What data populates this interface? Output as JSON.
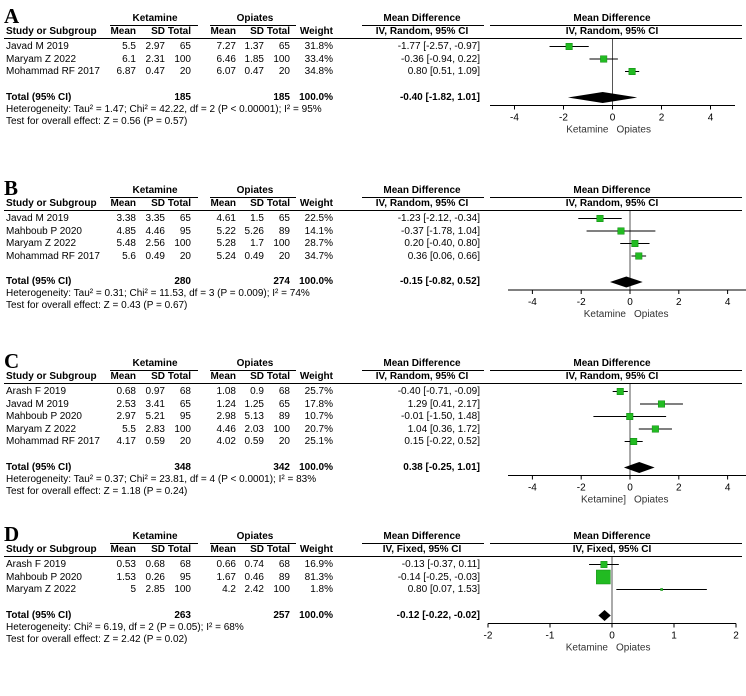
{
  "chart_data": [
    {
      "type": "forest",
      "label": "A",
      "model": "IV, Random, 95% CI",
      "header": {
        "study": "Study or Subgroup",
        "group1": "Ketamine",
        "group2": "Opiates",
        "mean": "Mean",
        "sd": "SD",
        "total": "Total",
        "weight": "Weight",
        "effect_title": "Mean Difference",
        "effect_model": "IV, Random, 95% CI"
      },
      "studies": [
        {
          "name": "Javad M 2019",
          "m1": "5.5",
          "sd1": "2.97",
          "n1": "65",
          "m2": "7.27",
          "sd2": "1.37",
          "n2": "65",
          "weight": "31.8%",
          "ci_text": "-1.77 [-2.57, -0.97]",
          "md": -1.77,
          "lo": -2.57,
          "hi": -0.97,
          "w": 31.8
        },
        {
          "name": "Maryam Z 2022",
          "m1": "6.1",
          "sd1": "2.31",
          "n1": "100",
          "m2": "6.46",
          "sd2": "1.85",
          "n2": "100",
          "weight": "33.4%",
          "ci_text": "-0.36 [-0.94, 0.22]",
          "md": -0.36,
          "lo": -0.94,
          "hi": 0.22,
          "w": 33.4
        },
        {
          "name": "Mohammad RF 2017",
          "m1": "6.87",
          "sd1": "0.47",
          "n1": "20",
          "m2": "6.07",
          "sd2": "0.47",
          "n2": "20",
          "weight": "34.8%",
          "ci_text": "0.80 [0.51, 1.09]",
          "md": 0.8,
          "lo": 0.51,
          "hi": 1.09,
          "w": 34.8
        }
      ],
      "total": {
        "label": "Total (95% CI)",
        "n1": "185",
        "n2": "185",
        "weight": "100.0%",
        "ci_text": "-0.40 [-1.82, 1.01]",
        "md": -0.4,
        "lo": -1.82,
        "hi": 1.01
      },
      "heterogeneity": "Heterogeneity: Tau² = 1.47; Chi² = 42.22, df = 2 (P < 0.00001); I² = 95%",
      "overall_effect": "Test for overall effect: Z = 0.56 (P = 0.57)",
      "axis": {
        "ticks": [
          "-4",
          "-2",
          "0",
          "2",
          "4"
        ],
        "tick_values": [
          -4,
          -2,
          0,
          2,
          4
        ],
        "range": [
          -5,
          5
        ],
        "left_label": "Ketamine",
        "right_label": "Opiates"
      }
    },
    {
      "type": "forest",
      "label": "B",
      "model": "IV, Random, 95% CI",
      "header": {
        "study": "Study or Subgroup",
        "group1": "Ketamine",
        "group2": "Opiates",
        "mean": "Mean",
        "sd": "SD",
        "total": "Total",
        "weight": "Weight",
        "effect_title": "Mean Difference",
        "effect_model": "IV, Random, 95% CI"
      },
      "studies": [
        {
          "name": "Javad M 2019",
          "m1": "3.38",
          "sd1": "3.35",
          "n1": "65",
          "m2": "4.61",
          "sd2": "1.5",
          "n2": "65",
          "weight": "22.5%",
          "ci_text": "-1.23 [-2.12, -0.34]",
          "md": -1.23,
          "lo": -2.12,
          "hi": -0.34,
          "w": 22.5
        },
        {
          "name": "Mahboub P 2020",
          "m1": "4.85",
          "sd1": "4.46",
          "n1": "95",
          "m2": "5.22",
          "sd2": "5.26",
          "n2": "89",
          "weight": "14.1%",
          "ci_text": "-0.37 [-1.78, 1.04]",
          "md": -0.37,
          "lo": -1.78,
          "hi": 1.04,
          "w": 14.1
        },
        {
          "name": "Maryam Z 2022",
          "m1": "5.48",
          "sd1": "2.56",
          "n1": "100",
          "m2": "5.28",
          "sd2": "1.7",
          "n2": "100",
          "weight": "28.7%",
          "ci_text": "0.20 [-0.40, 0.80]",
          "md": 0.2,
          "lo": -0.4,
          "hi": 0.8,
          "w": 28.7
        },
        {
          "name": "Mohammad RF 2017",
          "m1": "5.6",
          "sd1": "0.49",
          "n1": "20",
          "m2": "5.24",
          "sd2": "0.49",
          "n2": "20",
          "weight": "34.7%",
          "ci_text": "0.36 [0.06, 0.66]",
          "md": 0.36,
          "lo": 0.06,
          "hi": 0.66,
          "w": 34.7
        }
      ],
      "total": {
        "label": "Total (95% CI)",
        "n1": "280",
        "n2": "274",
        "weight": "100.0%",
        "ci_text": "-0.15 [-0.82, 0.52]",
        "md": -0.15,
        "lo": -0.82,
        "hi": 0.52
      },
      "heterogeneity": "Heterogeneity: Tau² = 0.31; Chi² = 11.53, df = 3 (P = 0.009); I² = 74%",
      "overall_effect": "Test for overall effect: Z = 0.43 (P = 0.67)",
      "axis": {
        "ticks": [
          "-4",
          "-2",
          "0",
          "2",
          "4"
        ],
        "tick_values": [
          -4,
          -2,
          0,
          2,
          4
        ],
        "range": [
          -5,
          5
        ],
        "left_label": "Ketamine",
        "right_label": "Opiates"
      }
    },
    {
      "type": "forest",
      "label": "C",
      "model": "IV, Random, 95% CI",
      "header": {
        "study": "Study or Subgroup",
        "group1": "Ketamine",
        "group2": "Opiates",
        "mean": "Mean",
        "sd": "SD",
        "total": "Total",
        "weight": "Weight",
        "effect_title": "Mean Difference",
        "effect_model": "IV, Random, 95% CI"
      },
      "studies": [
        {
          "name": "Arash F 2019",
          "m1": "0.68",
          "sd1": "0.97",
          "n1": "68",
          "m2": "1.08",
          "sd2": "0.9",
          "n2": "68",
          "weight": "25.7%",
          "ci_text": "-0.40 [-0.71, -0.09]",
          "md": -0.4,
          "lo": -0.71,
          "hi": -0.09,
          "w": 25.7
        },
        {
          "name": "Javad M 2019",
          "m1": "2.53",
          "sd1": "3.41",
          "n1": "65",
          "m2": "1.24",
          "sd2": "1.25",
          "n2": "65",
          "weight": "17.8%",
          "ci_text": "1.29 [0.41, 2.17]",
          "md": 1.29,
          "lo": 0.41,
          "hi": 2.17,
          "w": 17.8
        },
        {
          "name": "Mahboub P 2020",
          "m1": "2.97",
          "sd1": "5.21",
          "n1": "95",
          "m2": "2.98",
          "sd2": "5.13",
          "n2": "89",
          "weight": "10.7%",
          "ci_text": "-0.01 [-1.50, 1.48]",
          "md": -0.01,
          "lo": -1.5,
          "hi": 1.48,
          "w": 10.7
        },
        {
          "name": "Maryam Z 2022",
          "m1": "5.5",
          "sd1": "2.83",
          "n1": "100",
          "m2": "4.46",
          "sd2": "2.03",
          "n2": "100",
          "weight": "20.7%",
          "ci_text": "1.04 [0.36, 1.72]",
          "md": 1.04,
          "lo": 0.36,
          "hi": 1.72,
          "w": 20.7
        },
        {
          "name": "Mohammad RF 2017",
          "m1": "4.17",
          "sd1": "0.59",
          "n1": "20",
          "m2": "4.02",
          "sd2": "0.59",
          "n2": "20",
          "weight": "25.1%",
          "ci_text": "0.15 [-0.22, 0.52]",
          "md": 0.15,
          "lo": -0.22,
          "hi": 0.52,
          "w": 25.1
        }
      ],
      "total": {
        "label": "Total (95% CI)",
        "n1": "348",
        "n2": "342",
        "weight": "100.0%",
        "ci_text": "0.38 [-0.25, 1.01]",
        "md": 0.38,
        "lo": -0.25,
        "hi": 1.01
      },
      "heterogeneity": "Heterogeneity: Tau² = 0.37; Chi² = 23.81, df = 4 (P < 0.0001); I² = 83%",
      "overall_effect": "Test for overall effect: Z = 1.18 (P = 0.24)",
      "axis": {
        "ticks": [
          "-4",
          "-2",
          "0",
          "2",
          "4"
        ],
        "tick_values": [
          -4,
          -2,
          0,
          2,
          4
        ],
        "range": [
          -5,
          5
        ],
        "left_label": "Ketamine]",
        "right_label": "Opiates"
      }
    },
    {
      "type": "forest",
      "label": "D",
      "model": "IV, Fixed, 95% CI",
      "header": {
        "study": "Study or Subgroup",
        "group1": "Ketamine",
        "group2": "Opiates",
        "mean": "Mean",
        "sd": "SD",
        "total": "Total",
        "weight": "Weight",
        "effect_title": "Mean Difference",
        "effect_model": "IV, Fixed, 95% CI"
      },
      "studies": [
        {
          "name": "Arash F 2019",
          "m1": "0.53",
          "sd1": "0.68",
          "n1": "68",
          "m2": "0.66",
          "sd2": "0.74",
          "n2": "68",
          "weight": "16.9%",
          "ci_text": "-0.13 [-0.37, 0.11]",
          "md": -0.13,
          "lo": -0.37,
          "hi": 0.11,
          "w": 16.9
        },
        {
          "name": "Mahboub P 2020",
          "m1": "1.53",
          "sd1": "0.26",
          "n1": "95",
          "m2": "1.67",
          "sd2": "0.46",
          "n2": "89",
          "weight": "81.3%",
          "ci_text": "-0.14 [-0.25, -0.03]",
          "md": -0.14,
          "lo": -0.25,
          "hi": -0.03,
          "w": 81.3
        },
        {
          "name": "Maryam Z 2022",
          "m1": "5",
          "sd1": "2.85",
          "n1": "100",
          "m2": "4.2",
          "sd2": "2.42",
          "n2": "100",
          "weight": "1.8%",
          "ci_text": "0.80 [0.07, 1.53]",
          "md": 0.8,
          "lo": 0.07,
          "hi": 1.53,
          "w": 1.8
        }
      ],
      "total": {
        "label": "Total (95% CI)",
        "n1": "263",
        "n2": "257",
        "weight": "100.0%",
        "ci_text": "-0.12 [-0.22, -0.02]",
        "md": -0.12,
        "lo": -0.22,
        "hi": -0.02
      },
      "heterogeneity": "Heterogeneity: Chi² = 6.19, df = 2 (P = 0.05); I² = 68%",
      "overall_effect": "Test for overall effect: Z = 2.42 (P = 0.02)",
      "axis": {
        "ticks": [
          "-2",
          "-1",
          "0",
          "1",
          "2"
        ],
        "tick_values": [
          -2,
          -1,
          0,
          1,
          2
        ],
        "range": [
          -2,
          2
        ],
        "left_label": "Ketamine",
        "right_label": "Opiates"
      }
    }
  ],
  "colors": {
    "marker": "#22bb22",
    "marker_edge": "#118811",
    "line": "#000000",
    "zero_line": "#555555"
  }
}
